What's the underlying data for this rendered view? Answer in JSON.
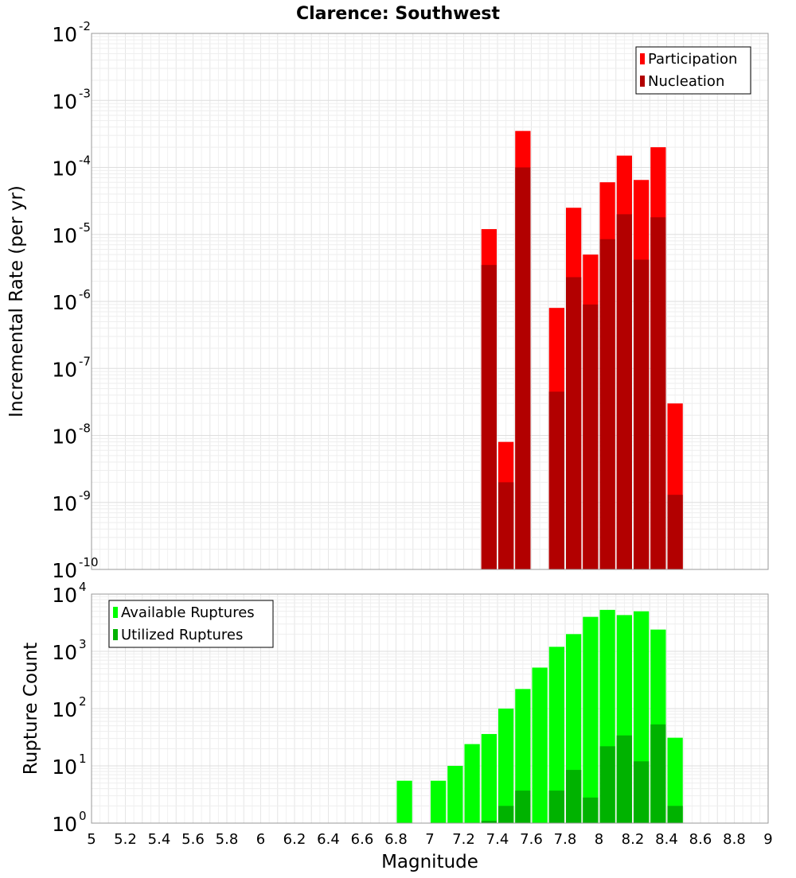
{
  "chart_data": [
    {
      "type": "bar",
      "title": "Clarence: Southwest",
      "xlabel": "",
      "ylabel": "Incremental Rate (per yr)",
      "yscale": "log",
      "ylim_exponents": [
        -10,
        -2
      ],
      "y_tick_exponents": [
        -10,
        -9,
        -8,
        -7,
        -6,
        -5,
        -4,
        -3,
        -2
      ],
      "xlim": [
        5,
        9
      ],
      "bin_width": 0.1,
      "grid": true,
      "legend_position": "top-right",
      "colors": {
        "participation": "#ff0000",
        "nucleation": "#b20000"
      },
      "x": [
        7.35,
        7.45,
        7.55,
        7.75,
        7.85,
        7.95,
        8.05,
        8.15,
        8.25,
        8.35,
        8.45
      ],
      "series": [
        {
          "name": "Participation",
          "values": [
            1.2e-05,
            8e-09,
            0.00035,
            8e-07,
            2.5e-05,
            5e-06,
            6e-05,
            0.00015,
            6.5e-05,
            0.0002,
            3e-08
          ]
        },
        {
          "name": "Nucleation",
          "values": [
            3.5e-06,
            2e-09,
            0.0001,
            4.5e-08,
            2.3e-06,
            9e-07,
            8.5e-06,
            2e-05,
            4.2e-06,
            1.8e-05,
            1.3e-09
          ]
        }
      ]
    },
    {
      "type": "bar",
      "title": "",
      "xlabel": "Magnitude",
      "ylabel": "Rupture Count",
      "yscale": "log",
      "ylim_exponents": [
        0,
        4
      ],
      "y_tick_exponents": [
        0,
        1,
        2,
        3,
        4
      ],
      "xlim": [
        5,
        9
      ],
      "x_ticks": [
        "5",
        "5.2",
        "5.4",
        "5.6",
        "5.8",
        "6",
        "6.2",
        "6.4",
        "6.6",
        "6.8",
        "7",
        "7.2",
        "7.4",
        "7.6",
        "7.8",
        "8",
        "8.2",
        "8.4",
        "8.6",
        "8.8",
        "9"
      ],
      "bin_width": 0.1,
      "grid": true,
      "legend_position": "top-left",
      "colors": {
        "available": "#00ff00",
        "utilized": "#00b200"
      },
      "x": [
        6.85,
        7.05,
        7.15,
        7.25,
        7.35,
        7.45,
        7.55,
        7.65,
        7.75,
        7.85,
        7.95,
        8.05,
        8.15,
        8.25,
        8.35,
        8.45
      ],
      "series": [
        {
          "name": "Available Ruptures",
          "values": [
            5.5,
            5.5,
            10,
            24,
            36,
            100,
            220,
            520,
            1200,
            2000,
            4000,
            5300,
            4300,
            5000,
            2400,
            31
          ]
        },
        {
          "name": "Utilized Ruptures",
          "values": [
            0,
            0,
            0,
            0,
            1.1,
            2,
            3.7,
            0,
            3.7,
            8.5,
            2.8,
            22,
            34,
            12,
            53,
            2
          ]
        }
      ]
    }
  ]
}
